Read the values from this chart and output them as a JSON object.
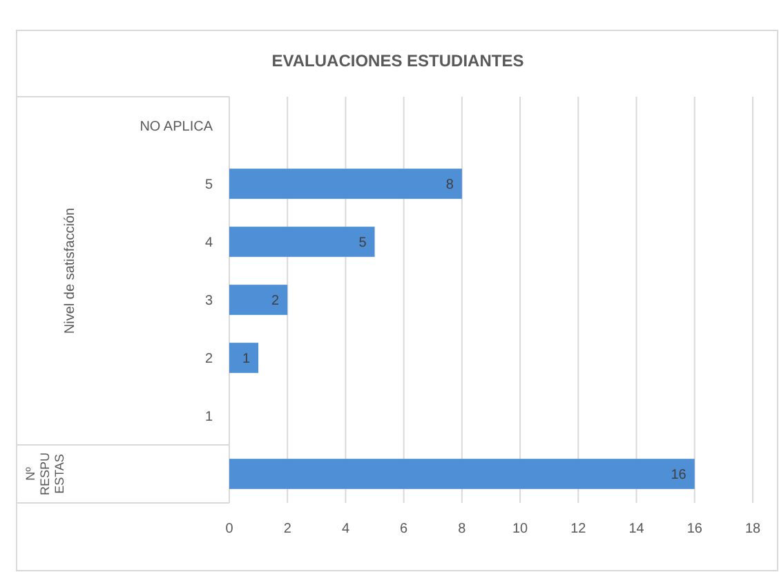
{
  "chart_data": {
    "type": "bar",
    "orientation": "horizontal",
    "title": "EVALUACIONES ESTUDIANTES",
    "ylabel": "Nivel de satisfacción",
    "annotations": [
      "Nº RESPUESTAS"
    ],
    "categories": [
      "NO APLICA",
      "5",
      "4",
      "3",
      "2",
      "1",
      null
    ],
    "values": [
      null,
      8,
      5,
      2,
      1,
      null,
      16
    ],
    "color": "#4f8fd6",
    "data_labels": true,
    "xlim": [
      0,
      18
    ],
    "xticks": [
      0,
      2,
      4,
      6,
      8,
      10,
      12,
      14,
      16,
      18
    ],
    "grid": "x"
  }
}
